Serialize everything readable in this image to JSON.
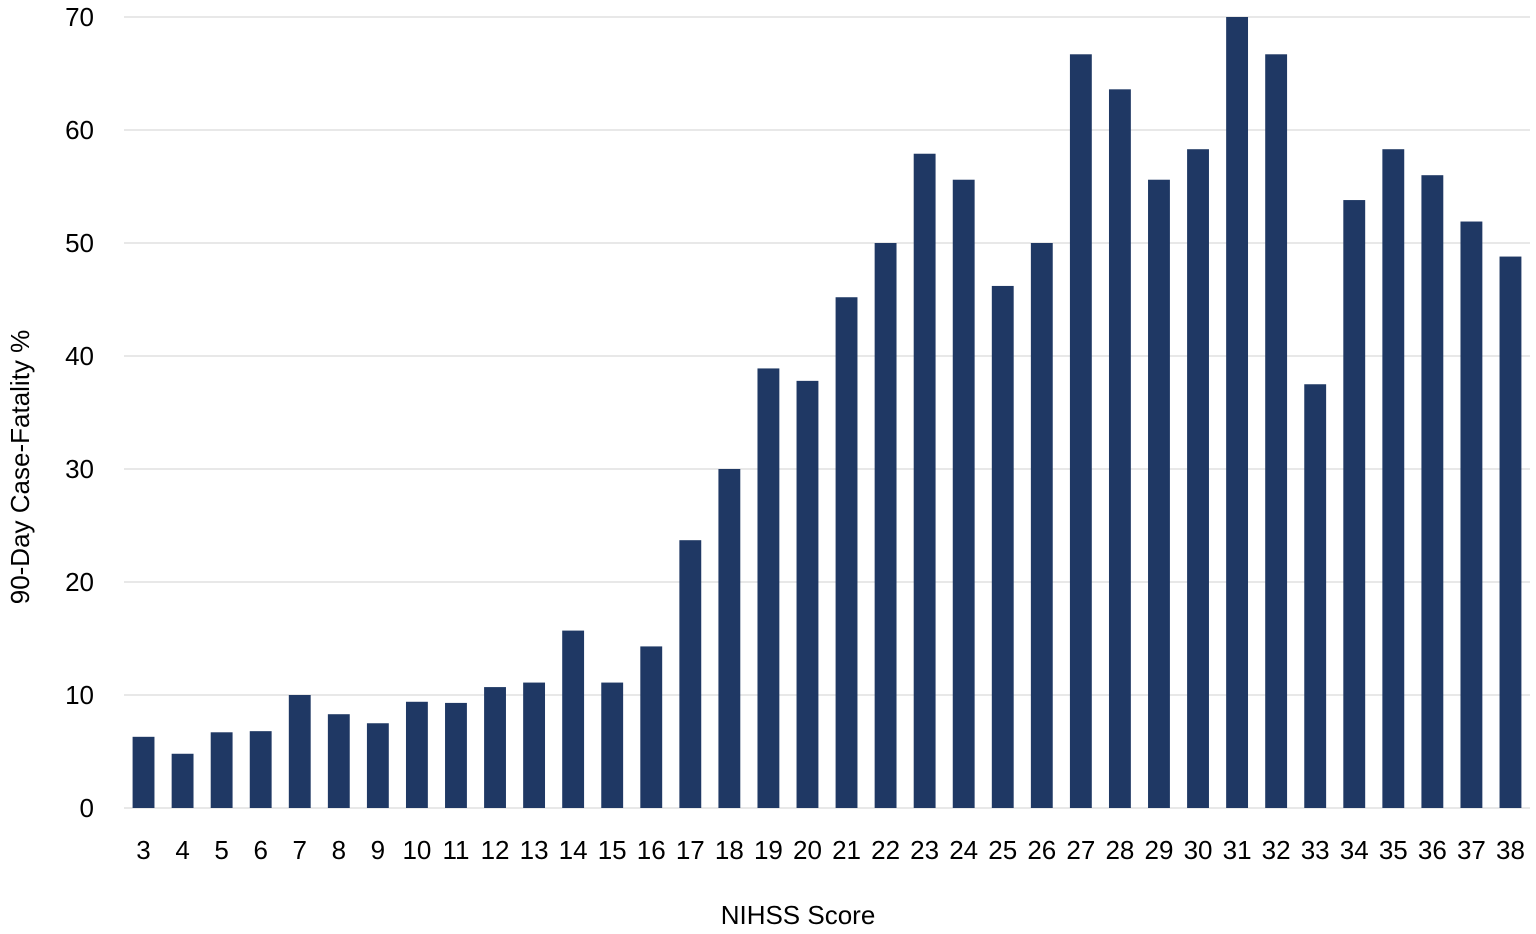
{
  "chart_data": {
    "type": "bar",
    "title": "",
    "xlabel": "NIHSS Score",
    "ylabel": "90-Day Case-Fatality %",
    "ylim": [
      0,
      70
    ],
    "yticks": [
      0,
      10,
      20,
      30,
      40,
      50,
      60,
      70
    ],
    "grid": "horizontal",
    "legend": "none",
    "bar_color": "#1f3864",
    "grid_color": "#d9d9d9",
    "categories": [
      "3",
      "4",
      "5",
      "6",
      "7",
      "8",
      "9",
      "10",
      "11",
      "12",
      "13",
      "14",
      "15",
      "16",
      "17",
      "18",
      "19",
      "20",
      "21",
      "22",
      "23",
      "24",
      "25",
      "26",
      "27",
      "28",
      "29",
      "30",
      "31",
      "32",
      "33",
      "34",
      "35",
      "36",
      "37",
      "38"
    ],
    "values": [
      6.3,
      4.8,
      6.7,
      6.8,
      10.0,
      8.3,
      7.5,
      9.4,
      9.3,
      10.7,
      11.1,
      15.7,
      11.1,
      14.3,
      23.7,
      30.0,
      38.9,
      37.8,
      45.2,
      50.0,
      57.9,
      55.6,
      46.2,
      50.0,
      66.7,
      63.6,
      55.6,
      58.3,
      70.0,
      66.7,
      37.5,
      53.8,
      58.3,
      56.0,
      51.9,
      48.8
    ]
  }
}
